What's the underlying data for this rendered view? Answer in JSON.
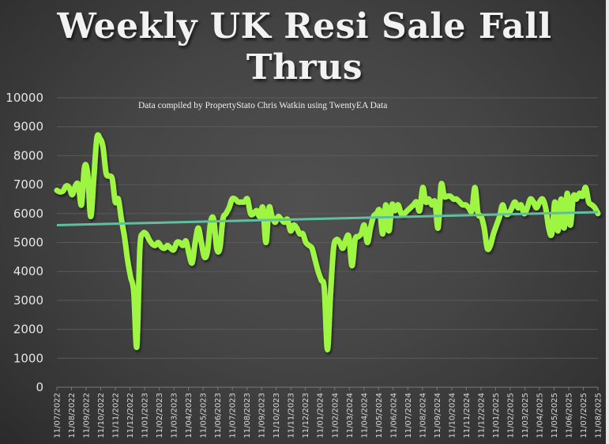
{
  "title": "Weekly UK Resi Sale Fall Thrus",
  "subtitle": "Data compiled by PropertyStato Chris Watkin using TwentyEA Data",
  "colors": {
    "line": "#9ef542",
    "trend": "#5fbfa0",
    "grid": "#5a5a5a",
    "text": "#e6e6e6"
  },
  "chart_data": {
    "type": "line",
    "title": "Weekly UK Resi Sale Fall Thrus",
    "subtitle": "Data compiled by PropertyStato Chris Watkin using TwentyEA Data",
    "xlabel": "",
    "ylabel": "",
    "ylim": [
      0,
      10000
    ],
    "yticks": [
      0,
      1000,
      2000,
      3000,
      4000,
      5000,
      6000,
      7000,
      8000,
      9000,
      10000
    ],
    "grid": true,
    "legend": "none",
    "categories": [
      "11/07/2022",
      "11/08/2022",
      "11/09/2022",
      "11/10/2022",
      "11/11/2022",
      "11/12/2022",
      "11/01/2023",
      "11/02/2023",
      "11/03/2023",
      "11/04/2023",
      "11/05/2023",
      "11/06/2023",
      "11/07/2023",
      "11/08/2023",
      "11/09/2023",
      "11/10/2023",
      "11/11/2023",
      "11/12/2023",
      "11/01/2024",
      "11/02/2024",
      "11/03/2024",
      "11/04/2024",
      "11/05/2024",
      "11/06/2024",
      "11/07/2024",
      "11/08/2024",
      "11/09/2024",
      "11/10/2024",
      "11/11/2024",
      "11/12/2024",
      "11/01/2025",
      "11/02/2025",
      "11/03/2025",
      "11/04/2025",
      "11/05/2025",
      "11/06/2025",
      "11/07/2025",
      "11/08/2025"
    ],
    "series": [
      {
        "name": "Weekly fall thrus",
        "frequency": "weekly",
        "values": [
          6800,
          6750,
          6780,
          6950,
          6900,
          6650,
          6950,
          7000,
          6300,
          7600,
          7400,
          5900,
          7200,
          8600,
          8600,
          8300,
          7400,
          7300,
          7200,
          6400,
          6500,
          5800,
          5200,
          4400,
          3800,
          3300,
          1400,
          4800,
          5300,
          5300,
          5100,
          4950,
          4900,
          5000,
          4850,
          4800,
          4900,
          4800,
          4750,
          5000,
          5000,
          4900,
          5050,
          4600,
          4300,
          5000,
          5500,
          5000,
          4500,
          4700,
          5700,
          5800,
          4800,
          4800,
          5800,
          6000,
          6200,
          6500,
          6500,
          6400,
          6400,
          6400,
          6500,
          6000,
          6000,
          6100,
          5900,
          6200,
          5000,
          6200,
          5900,
          5700,
          5900,
          5800,
          5700,
          5800,
          5400,
          5600,
          5500,
          5300,
          5300,
          5000,
          4900,
          4800,
          4400,
          4000,
          3700,
          3400,
          1300,
          3200,
          4800,
          5100,
          5000,
          4800,
          5100,
          5200,
          4200,
          5100,
          5200,
          5300,
          5600,
          5000,
          5500,
          5900,
          6000,
          6100,
          5300,
          6300,
          5400,
          6300,
          6100,
          6300,
          6000,
          6000,
          6100,
          6200,
          6300,
          6400,
          6100,
          6900,
          6400,
          6500,
          6300,
          6400,
          5500,
          7000,
          6600,
          6600,
          6600,
          6500,
          6500,
          6400,
          6300,
          6300,
          6200,
          6100,
          6900,
          6000,
          5900,
          5500,
          4800,
          4900,
          5300,
          5600,
          5900,
          6300,
          6000,
          6000,
          6200,
          6400,
          6200,
          6300,
          6000,
          6200,
          6500,
          6400,
          6200,
          6400,
          6500,
          6200,
          5500,
          5300,
          6400,
          5400,
          6500,
          5500,
          6700,
          5600,
          6600,
          6500,
          6700,
          6600,
          6900,
          6400,
          6300,
          6200,
          6000
        ]
      },
      {
        "name": "Linear trend",
        "type": "trendline",
        "start": 5600,
        "end": 6050
      }
    ]
  },
  "axes": {
    "y_labels": [
      "0",
      "1000",
      "2000",
      "3000",
      "4000",
      "5000",
      "6000",
      "7000",
      "8000",
      "9000",
      "10000"
    ]
  }
}
